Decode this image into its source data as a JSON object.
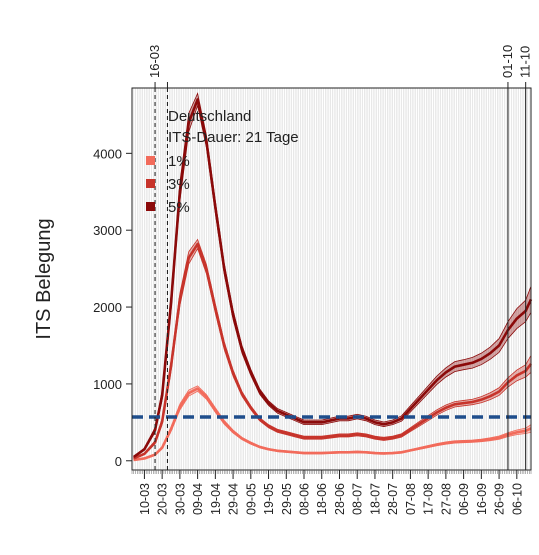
{
  "chart_data": {
    "type": "line",
    "ylabel": "ITS Belegung",
    "xlabel": "",
    "ylim": [
      0,
      4700
    ],
    "yticks": [
      0,
      1000,
      2000,
      3000,
      4000
    ],
    "xtick_labels": [
      "10-03",
      "20-03",
      "30-03",
      "09-04",
      "19-04",
      "29-04",
      "09-05",
      "19-05",
      "29-05",
      "08-06",
      "18-06",
      "28-06",
      "08-07",
      "18-07",
      "28-07",
      "07-08",
      "17-08",
      "27-08",
      "06-09",
      "16-09",
      "26-09",
      "06-10"
    ],
    "legend_title_lines": [
      "Deutschland",
      "ITS-Dauer: 21 Tage"
    ],
    "legend_placement": "top-left",
    "grid": true,
    "vertical_markers": [
      {
        "label": "16-03",
        "x": "2020-03-16",
        "style": "dashed"
      },
      {
        "label": "",
        "x": "2020-03-23",
        "style": "dashed"
      },
      {
        "label": "01-10",
        "x": "2020-10-01",
        "style": "solid"
      },
      {
        "label": "11-10",
        "x": "2020-10-11",
        "style": "solid"
      }
    ],
    "reference_line": {
      "y": 570,
      "color": "#1f4e8c",
      "style": "dashed"
    },
    "x": [
      "2020-03-04",
      "2020-03-10",
      "2020-03-16",
      "2020-03-20",
      "2020-03-25",
      "2020-03-30",
      "2020-04-04",
      "2020-04-09",
      "2020-04-14",
      "2020-04-19",
      "2020-04-24",
      "2020-04-29",
      "2020-05-04",
      "2020-05-09",
      "2020-05-14",
      "2020-05-19",
      "2020-05-24",
      "2020-05-29",
      "2020-06-03",
      "2020-06-08",
      "2020-06-13",
      "2020-06-18",
      "2020-06-23",
      "2020-06-28",
      "2020-07-03",
      "2020-07-08",
      "2020-07-13",
      "2020-07-18",
      "2020-07-23",
      "2020-07-28",
      "2020-08-02",
      "2020-08-07",
      "2020-08-12",
      "2020-08-17",
      "2020-08-22",
      "2020-08-27",
      "2020-09-01",
      "2020-09-06",
      "2020-09-11",
      "2020-09-16",
      "2020-09-21",
      "2020-09-26",
      "2020-10-01",
      "2020-10-06",
      "2020-10-11",
      "2020-10-14"
    ],
    "series": [
      {
        "name": "1%",
        "color": "#f26b5b",
        "values": [
          10,
          30,
          80,
          170,
          410,
          700,
          880,
          940,
          830,
          660,
          500,
          380,
          290,
          230,
          180,
          150,
          130,
          120,
          110,
          100,
          100,
          100,
          105,
          110,
          110,
          115,
          110,
          100,
          95,
          100,
          110,
          135,
          160,
          185,
          210,
          230,
          245,
          250,
          255,
          265,
          280,
          300,
          340,
          370,
          390,
          420
        ],
        "upper": [
          12,
          34,
          88,
          185,
          440,
          740,
          920,
          975,
          860,
          690,
          525,
          400,
          305,
          245,
          190,
          160,
          140,
          130,
          120,
          110,
          110,
          110,
          115,
          120,
          120,
          125,
          120,
          110,
          105,
          110,
          120,
          145,
          172,
          198,
          224,
          245,
          260,
          265,
          270,
          282,
          300,
          322,
          365,
          400,
          425,
          470
        ],
        "lower": [
          8,
          26,
          72,
          155,
          380,
          660,
          840,
          905,
          800,
          630,
          475,
          360,
          275,
          215,
          170,
          140,
          120,
          110,
          100,
          90,
          90,
          90,
          95,
          100,
          100,
          105,
          100,
          90,
          85,
          90,
          100,
          125,
          148,
          172,
          196,
          215,
          230,
          235,
          240,
          248,
          260,
          278,
          315,
          340,
          355,
          370
        ]
      },
      {
        "name": "3%",
        "color": "#c7342b",
        "values": [
          30,
          90,
          240,
          510,
          1230,
          2100,
          2640,
          2820,
          2490,
          1980,
          1500,
          1140,
          870,
          690,
          540,
          450,
          390,
          360,
          330,
          300,
          300,
          300,
          315,
          330,
          330,
          345,
          330,
          300,
          285,
          300,
          330,
          405,
          480,
          555,
          630,
          690,
          735,
          750,
          765,
          795,
          840,
          900,
          1020,
          1110,
          1170,
          1260
        ],
        "upper": [
          35,
          100,
          260,
          550,
          1300,
          2180,
          2720,
          2880,
          2550,
          2040,
          1550,
          1180,
          900,
          715,
          560,
          470,
          410,
          380,
          350,
          320,
          320,
          320,
          335,
          350,
          350,
          365,
          350,
          320,
          305,
          320,
          352,
          430,
          510,
          588,
          665,
          725,
          770,
          785,
          800,
          835,
          885,
          950,
          1080,
          1180,
          1250,
          1370
        ],
        "lower": [
          25,
          80,
          220,
          470,
          1160,
          2020,
          2560,
          2760,
          2430,
          1920,
          1450,
          1100,
          840,
          665,
          520,
          430,
          370,
          340,
          310,
          280,
          280,
          280,
          295,
          310,
          310,
          325,
          310,
          280,
          265,
          280,
          308,
          380,
          450,
          522,
          595,
          655,
          700,
          715,
          730,
          755,
          795,
          850,
          960,
          1040,
          1090,
          1150
        ]
      },
      {
        "name": "5%",
        "color": "#8b0a0a",
        "values": [
          50,
          150,
          400,
          850,
          2050,
          3500,
          4400,
          4700,
          4150,
          3300,
          2500,
          1900,
          1450,
          1150,
          900,
          750,
          650,
          600,
          550,
          500,
          500,
          500,
          525,
          550,
          550,
          575,
          550,
          500,
          475,
          500,
          550,
          675,
          800,
          925,
          1050,
          1150,
          1225,
          1250,
          1275,
          1325,
          1400,
          1500,
          1700,
          1850,
          1950,
          2100
        ],
        "upper": [
          58,
          165,
          430,
          910,
          2150,
          3620,
          4520,
          4780,
          4230,
          3380,
          2570,
          1960,
          1500,
          1190,
          935,
          780,
          680,
          630,
          580,
          530,
          530,
          530,
          555,
          580,
          580,
          605,
          580,
          530,
          505,
          530,
          585,
          715,
          845,
          975,
          1105,
          1210,
          1290,
          1315,
          1345,
          1400,
          1480,
          1590,
          1810,
          1980,
          2090,
          2270
        ],
        "lower": [
          42,
          135,
          370,
          790,
          1950,
          3380,
          4280,
          4620,
          4070,
          3220,
          2430,
          1840,
          1400,
          1110,
          865,
          720,
          620,
          570,
          520,
          470,
          470,
          470,
          495,
          520,
          520,
          545,
          520,
          470,
          445,
          470,
          515,
          635,
          755,
          875,
          995,
          1090,
          1160,
          1185,
          1205,
          1250,
          1320,
          1410,
          1590,
          1720,
          1810,
          1930
        ]
      }
    ]
  }
}
